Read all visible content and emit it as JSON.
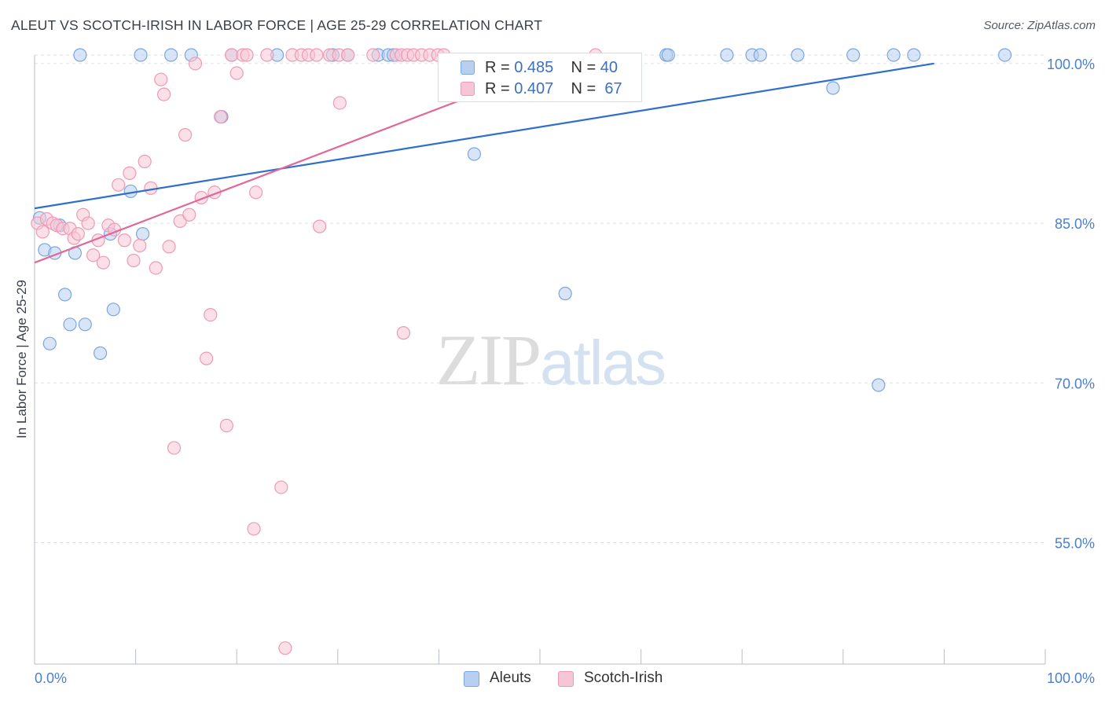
{
  "title": "ALEUT VS SCOTCH-IRISH IN LABOR FORCE | AGE 25-29 CORRELATION CHART",
  "source": "Source: ZipAtlas.com",
  "watermark": {
    "zip": "ZIP",
    "atlas": "atlas"
  },
  "chart_data": {
    "type": "scatter",
    "title": "ALEUT VS SCOTCH-IRISH IN LABOR FORCE | AGE 25-29 CORRELATION CHART",
    "xlabel": "",
    "ylabel": "In Labor Force | Age 25-29",
    "xlim": [
      0,
      100
    ],
    "ylim": [
      43.6,
      100.8
    ],
    "x_tick_labels": [
      "0.0%",
      "100.0%"
    ],
    "y_ticks": [
      {
        "value": 100,
        "label": "100.0%"
      },
      {
        "value": 85,
        "label": "85.0%"
      },
      {
        "value": 70,
        "label": "70.0%"
      },
      {
        "value": 55,
        "label": "55.0%"
      }
    ],
    "grid": true,
    "legend_position": "top-center",
    "series": [
      {
        "name": "Aleuts",
        "color": "#7aa6e3",
        "fill": "#b8d0f0",
        "line_color": "#2f6fcb",
        "stats": {
          "r_label": "R =",
          "r_value": "0.485",
          "n_label": "N =",
          "n_value": "40"
        },
        "trend": {
          "x": [
            0,
            89
          ],
          "y": [
            86.4,
            100.0
          ]
        },
        "points": [
          {
            "x": 0.5,
            "y": 85.5
          },
          {
            "x": 1.0,
            "y": 82.5
          },
          {
            "x": 2.0,
            "y": 82.2
          },
          {
            "x": 2.5,
            "y": 84.8
          },
          {
            "x": 3.0,
            "y": 78.3
          },
          {
            "x": 3.5,
            "y": 75.5
          },
          {
            "x": 1.5,
            "y": 73.7
          },
          {
            "x": 4.0,
            "y": 82.2
          },
          {
            "x": 5.0,
            "y": 75.5
          },
          {
            "x": 6.5,
            "y": 72.8
          },
          {
            "x": 7.5,
            "y": 84.0
          },
          {
            "x": 7.8,
            "y": 76.9
          },
          {
            "x": 9.5,
            "y": 88.0
          },
          {
            "x": 10.7,
            "y": 84.0
          },
          {
            "x": 4.5,
            "y": 100.8
          },
          {
            "x": 10.5,
            "y": 100.8
          },
          {
            "x": 13.5,
            "y": 100.8
          },
          {
            "x": 15.5,
            "y": 100.8
          },
          {
            "x": 19.5,
            "y": 100.8
          },
          {
            "x": 18.5,
            "y": 95.0
          },
          {
            "x": 24.0,
            "y": 100.8
          },
          {
            "x": 29.5,
            "y": 100.8
          },
          {
            "x": 31.0,
            "y": 100.8
          },
          {
            "x": 34.0,
            "y": 100.8
          },
          {
            "x": 35.0,
            "y": 100.8
          },
          {
            "x": 35.5,
            "y": 100.8
          },
          {
            "x": 43.5,
            "y": 91.5
          },
          {
            "x": 52.5,
            "y": 78.4
          },
          {
            "x": 62.5,
            "y": 100.8
          },
          {
            "x": 62.7,
            "y": 100.8
          },
          {
            "x": 68.5,
            "y": 100.8
          },
          {
            "x": 71.0,
            "y": 100.8
          },
          {
            "x": 71.8,
            "y": 100.8
          },
          {
            "x": 75.5,
            "y": 100.8
          },
          {
            "x": 79.0,
            "y": 97.7
          },
          {
            "x": 81.0,
            "y": 100.8
          },
          {
            "x": 85.0,
            "y": 100.8
          },
          {
            "x": 87.0,
            "y": 100.8
          },
          {
            "x": 83.5,
            "y": 69.8
          },
          {
            "x": 96.0,
            "y": 100.8
          }
        ]
      },
      {
        "name": "Scotch-Irish",
        "color": "#ee9ab5",
        "fill": "#f7c6d6",
        "line_color": "#e0689a",
        "stats": {
          "r_label": "R =",
          "r_value": "0.407",
          "n_label": "N =",
          "n_value": "67"
        },
        "trend": {
          "x": [
            0,
            50
          ],
          "y": [
            81.3,
            99.4
          ]
        },
        "points": [
          {
            "x": 0.3,
            "y": 85.0
          },
          {
            "x": 0.8,
            "y": 84.2
          },
          {
            "x": 1.2,
            "y": 85.4
          },
          {
            "x": 1.8,
            "y": 85.0
          },
          {
            "x": 2.2,
            "y": 84.8
          },
          {
            "x": 2.8,
            "y": 84.5
          },
          {
            "x": 3.5,
            "y": 84.5
          },
          {
            "x": 3.9,
            "y": 83.6
          },
          {
            "x": 4.3,
            "y": 84.0
          },
          {
            "x": 4.8,
            "y": 85.8
          },
          {
            "x": 5.3,
            "y": 85.0
          },
          {
            "x": 5.8,
            "y": 82.0
          },
          {
            "x": 6.3,
            "y": 83.4
          },
          {
            "x": 6.8,
            "y": 81.3
          },
          {
            "x": 7.3,
            "y": 84.8
          },
          {
            "x": 7.9,
            "y": 84.4
          },
          {
            "x": 8.3,
            "y": 88.6
          },
          {
            "x": 8.9,
            "y": 83.4
          },
          {
            "x": 9.4,
            "y": 89.7
          },
          {
            "x": 9.8,
            "y": 81.5
          },
          {
            "x": 10.4,
            "y": 82.9
          },
          {
            "x": 10.9,
            "y": 90.8
          },
          {
            "x": 11.5,
            "y": 88.3
          },
          {
            "x": 12.0,
            "y": 80.8
          },
          {
            "x": 12.5,
            "y": 98.5
          },
          {
            "x": 12.8,
            "y": 97.1
          },
          {
            "x": 13.3,
            "y": 82.8
          },
          {
            "x": 13.8,
            "y": 63.9
          },
          {
            "x": 14.4,
            "y": 85.2
          },
          {
            "x": 14.9,
            "y": 93.3
          },
          {
            "x": 15.3,
            "y": 85.8
          },
          {
            "x": 15.9,
            "y": 100.0
          },
          {
            "x": 16.5,
            "y": 87.4
          },
          {
            "x": 17.0,
            "y": 72.3
          },
          {
            "x": 17.4,
            "y": 76.4
          },
          {
            "x": 17.8,
            "y": 87.9
          },
          {
            "x": 18.4,
            "y": 95.0
          },
          {
            "x": 19.0,
            "y": 66.0
          },
          {
            "x": 19.5,
            "y": 100.8
          },
          {
            "x": 20.0,
            "y": 99.1
          },
          {
            "x": 20.6,
            "y": 100.8
          },
          {
            "x": 21.0,
            "y": 100.8
          },
          {
            "x": 21.7,
            "y": 56.3
          },
          {
            "x": 21.9,
            "y": 87.9
          },
          {
            "x": 23.0,
            "y": 100.8
          },
          {
            "x": 24.4,
            "y": 60.2
          },
          {
            "x": 24.8,
            "y": 45.1
          },
          {
            "x": 25.5,
            "y": 100.8
          },
          {
            "x": 26.4,
            "y": 100.8
          },
          {
            "x": 27.1,
            "y": 100.8
          },
          {
            "x": 27.9,
            "y": 100.8
          },
          {
            "x": 28.2,
            "y": 84.7
          },
          {
            "x": 29.2,
            "y": 100.8
          },
          {
            "x": 30.1,
            "y": 100.8
          },
          {
            "x": 30.2,
            "y": 96.3
          },
          {
            "x": 31.0,
            "y": 100.8
          },
          {
            "x": 33.5,
            "y": 100.8
          },
          {
            "x": 35.8,
            "y": 100.8
          },
          {
            "x": 36.3,
            "y": 100.8
          },
          {
            "x": 36.9,
            "y": 100.8
          },
          {
            "x": 37.5,
            "y": 100.8
          },
          {
            "x": 38.3,
            "y": 100.8
          },
          {
            "x": 39.1,
            "y": 100.8
          },
          {
            "x": 39.9,
            "y": 100.8
          },
          {
            "x": 40.5,
            "y": 100.8
          },
          {
            "x": 36.5,
            "y": 74.7
          },
          {
            "x": 55.5,
            "y": 100.8
          }
        ]
      }
    ]
  }
}
